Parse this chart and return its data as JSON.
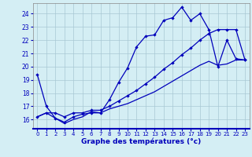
{
  "xlabel": "Graphe des températures (°c)",
  "bg_color": "#d4eef4",
  "grid_color": "#a8c8d4",
  "line_color": "#0000bb",
  "xlim": [
    -0.5,
    23.5
  ],
  "ylim": [
    15.3,
    24.8
  ],
  "yticks": [
    16,
    17,
    18,
    19,
    20,
    21,
    22,
    23,
    24
  ],
  "xticks": [
    0,
    1,
    2,
    3,
    4,
    5,
    6,
    7,
    8,
    9,
    10,
    11,
    12,
    13,
    14,
    15,
    16,
    17,
    18,
    19,
    20,
    21,
    22,
    23
  ],
  "curve_top_x": [
    0,
    1,
    2,
    3,
    4,
    5,
    6,
    7,
    8,
    9,
    10,
    11,
    12,
    13,
    14,
    15,
    16,
    17,
    18,
    19,
    20,
    21,
    22,
    23
  ],
  "curve_top_y": [
    19.4,
    17.0,
    16.1,
    15.8,
    16.2,
    16.4,
    16.5,
    16.5,
    17.5,
    18.8,
    19.9,
    21.5,
    22.3,
    22.4,
    23.5,
    23.7,
    24.5,
    23.5,
    24.0,
    22.8,
    20.0,
    22.0,
    20.6,
    20.5
  ],
  "curve_mid_x": [
    0,
    1,
    2,
    3,
    4,
    5,
    6,
    7,
    8,
    9,
    10,
    11,
    12,
    13,
    14,
    15,
    16,
    17,
    18,
    19,
    20,
    21,
    22,
    23
  ],
  "curve_mid_y": [
    16.2,
    16.5,
    16.5,
    16.2,
    16.5,
    16.5,
    16.7,
    16.7,
    17.0,
    17.4,
    17.8,
    18.2,
    18.7,
    19.2,
    19.8,
    20.3,
    20.9,
    21.4,
    22.0,
    22.5,
    22.8,
    22.8,
    22.8,
    20.5
  ],
  "curve_bot_x": [
    0,
    1,
    2,
    3,
    4,
    5,
    6,
    7,
    8,
    9,
    10,
    11,
    12,
    13,
    14,
    15,
    16,
    17,
    18,
    19,
    20,
    21,
    22,
    23
  ],
  "curve_bot_y": [
    16.2,
    16.5,
    16.1,
    15.7,
    16.0,
    16.2,
    16.6,
    16.5,
    16.8,
    17.0,
    17.2,
    17.5,
    17.8,
    18.1,
    18.5,
    18.9,
    19.3,
    19.7,
    20.1,
    20.4,
    20.1,
    20.2,
    20.5,
    20.5
  ]
}
